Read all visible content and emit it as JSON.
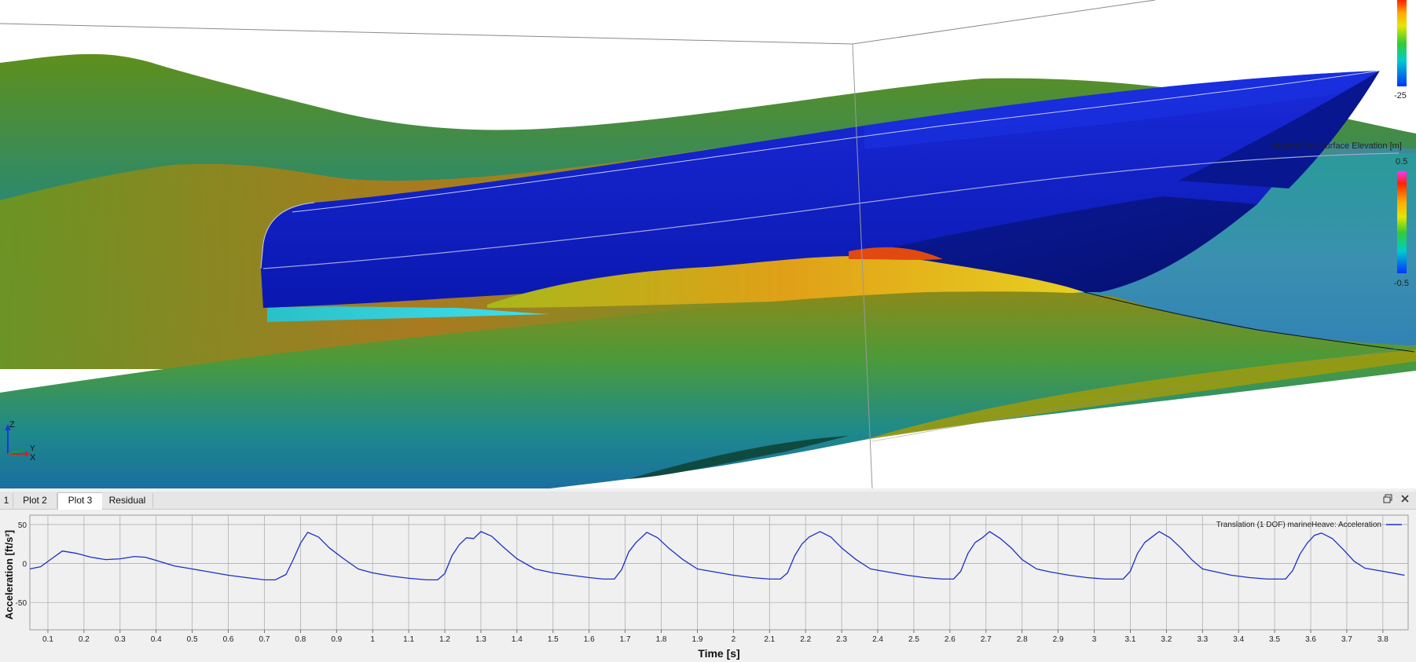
{
  "viewport": {
    "colorbar_top": {
      "min_label": "-25"
    },
    "colorbar_free_surface": {
      "title": "marineFree Surface Elevation [m]",
      "max_label": "0.5",
      "min_label": "-0.5"
    },
    "axes_triad": {
      "z_label": "Z",
      "y_label": "Y",
      "x_label": "X"
    }
  },
  "plot_panel": {
    "tabs": [
      {
        "label": "1",
        "active": false
      },
      {
        "label": "Plot 2",
        "active": false
      },
      {
        "label": "Plot 3",
        "active": true
      },
      {
        "label": "Residual",
        "active": false
      }
    ],
    "restore_icon": "restore-window-icon",
    "close_icon": "close-icon"
  },
  "chart_data": {
    "type": "line",
    "title": "",
    "xlabel": "Time [s]",
    "ylabel": "Acceleration [ft/s²]",
    "xlim": [
      0.05,
      3.87
    ],
    "ylim": [
      -85,
      62
    ],
    "grid": true,
    "legend_position": "top-right",
    "x_ticks": [
      "0.1",
      "0.2",
      "0.3",
      "0.4",
      "0.5",
      "0.6",
      "0.7",
      "0.8",
      "0.9",
      "1",
      "1.1",
      "1.2",
      "1.3",
      "1.4",
      "1.5",
      "1.6",
      "1.7",
      "1.8",
      "1.9",
      "2",
      "2.1",
      "2.2",
      "2.3",
      "2.4",
      "2.5",
      "2.6",
      "2.7",
      "2.8",
      "2.9",
      "3",
      "3.1",
      "3.2",
      "3.3",
      "3.4",
      "3.5",
      "3.6",
      "3.7",
      "3.8"
    ],
    "y_ticks": [
      "50",
      "0",
      "-50"
    ],
    "series": [
      {
        "name": "Translation (1 DOF) marineHeave: Acceleration",
        "color": "#1a2fc8",
        "x": [
          0.05,
          0.08,
          0.11,
          0.14,
          0.18,
          0.22,
          0.26,
          0.3,
          0.34,
          0.37,
          0.4,
          0.45,
          0.5,
          0.55,
          0.6,
          0.65,
          0.7,
          0.73,
          0.76,
          0.78,
          0.8,
          0.82,
          0.85,
          0.88,
          0.92,
          0.96,
          1.0,
          1.05,
          1.1,
          1.15,
          1.18,
          1.2,
          1.22,
          1.24,
          1.26,
          1.28,
          1.3,
          1.33,
          1.36,
          1.4,
          1.45,
          1.5,
          1.55,
          1.6,
          1.64,
          1.67,
          1.69,
          1.71,
          1.73,
          1.76,
          1.79,
          1.82,
          1.86,
          1.9,
          1.95,
          2.0,
          2.05,
          2.1,
          2.13,
          2.15,
          2.17,
          2.19,
          2.21,
          2.24,
          2.27,
          2.3,
          2.34,
          2.38,
          2.43,
          2.48,
          2.53,
          2.58,
          2.61,
          2.63,
          2.65,
          2.67,
          2.69,
          2.71,
          2.74,
          2.77,
          2.8,
          2.84,
          2.88,
          2.93,
          2.98,
          3.03,
          3.08,
          3.1,
          3.12,
          3.14,
          3.16,
          3.18,
          3.21,
          3.24,
          3.27,
          3.3,
          3.34,
          3.38,
          3.43,
          3.48,
          3.53,
          3.55,
          3.57,
          3.59,
          3.61,
          3.63,
          3.66,
          3.69,
          3.72,
          3.75,
          3.8,
          3.86
        ],
        "values": [
          -7,
          -4,
          6,
          16,
          13,
          8,
          5,
          6,
          9,
          8,
          4,
          -3,
          -7,
          -11,
          -15,
          -18,
          -21,
          -21,
          -14,
          5,
          26,
          40,
          34,
          20,
          6,
          -7,
          -12,
          -16,
          -19,
          -21,
          -21,
          -13,
          10,
          24,
          33,
          32,
          41,
          35,
          22,
          6,
          -7,
          -12,
          -15,
          -18,
          -20,
          -20,
          -8,
          15,
          27,
          40,
          33,
          20,
          5,
          -7,
          -11,
          -15,
          -18,
          -20,
          -20,
          -12,
          10,
          25,
          34,
          41,
          34,
          20,
          5,
          -7,
          -11,
          -15,
          -18,
          -20,
          -20,
          -10,
          13,
          27,
          33,
          41,
          32,
          20,
          5,
          -7,
          -11,
          -15,
          -18,
          -20,
          -20,
          -10,
          13,
          27,
          34,
          41,
          33,
          20,
          5,
          -7,
          -11,
          -15,
          -18,
          -20,
          -20,
          -9,
          12,
          26,
          36,
          39,
          32,
          18,
          3,
          -6,
          -10,
          -15
        ]
      }
    ]
  }
}
